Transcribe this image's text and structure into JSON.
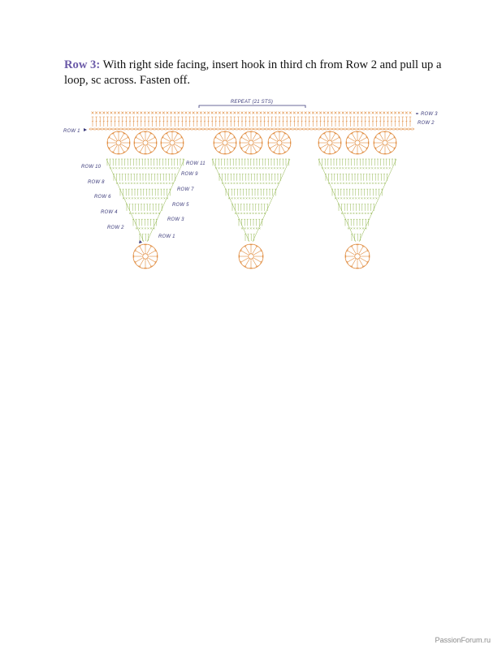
{
  "instruction": {
    "lead": "Row 3:",
    "text": " With right side facing, insert hook in third ch from Row 2 and pull up a loop, sc across. Fasten off."
  },
  "chart": {
    "repeat_label": "REPEAT (21 STS)",
    "border_labels": {
      "row3": "ROW 3",
      "row2": "ROW 2",
      "row1": "ROW 1"
    },
    "left_labels": [
      "ROW 10",
      "ROW 8",
      "ROW 6",
      "ROW 4",
      "ROW 2"
    ],
    "right_labels": [
      "ROW 11",
      "ROW 9",
      "ROW 7",
      "ROW 5",
      "ROW 3",
      "ROW 1"
    ],
    "colors": {
      "orange": "#e08a3c",
      "green": "#8fb44a",
      "label": "#3b3a7a"
    }
  },
  "footer": {
    "watermark": "PassionForum.ru"
  }
}
